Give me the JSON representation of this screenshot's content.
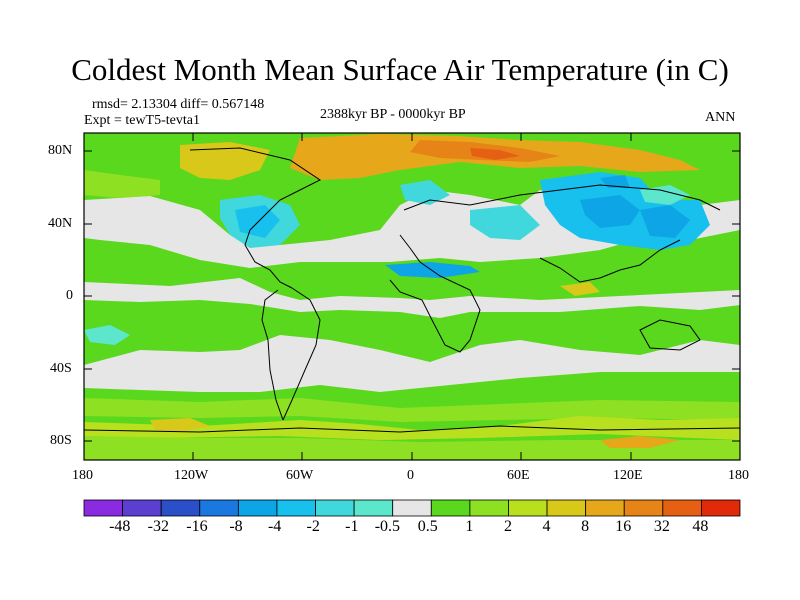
{
  "title": "Coldest Month Mean Surface Air Temperature (in C)",
  "stats": "rmsd= 2.13304  diff= 0.567148",
  "experiment": "Expt = tewT5-tevta1",
  "period": "2388kyr BP - 0000kyr BP",
  "season": "ANN",
  "lat_ticks": [
    "80N",
    "40N",
    "0",
    "40S",
    "80S"
  ],
  "lon_ticks": [
    "180",
    "120W",
    "60W",
    "0",
    "60E",
    "120E",
    "180"
  ],
  "colorbar": {
    "labels": [
      "-48",
      "-32",
      "-16",
      "-8",
      "-4",
      "-2",
      "-1",
      "-0.5",
      "0.5",
      "1",
      "2",
      "4",
      "8",
      "16",
      "32",
      "48"
    ],
    "colors": [
      "#8a2be2",
      "#5a3fd0",
      "#2a4fc8",
      "#1a78e0",
      "#0ea5e6",
      "#18c0ee",
      "#40d8dc",
      "#5ce6cc",
      "#e6e6e6",
      "#5ad81e",
      "#8ee022",
      "#b8e01e",
      "#d8c81a",
      "#e6a81a",
      "#e68418",
      "#e66014",
      "#e02a0a"
    ]
  }
}
